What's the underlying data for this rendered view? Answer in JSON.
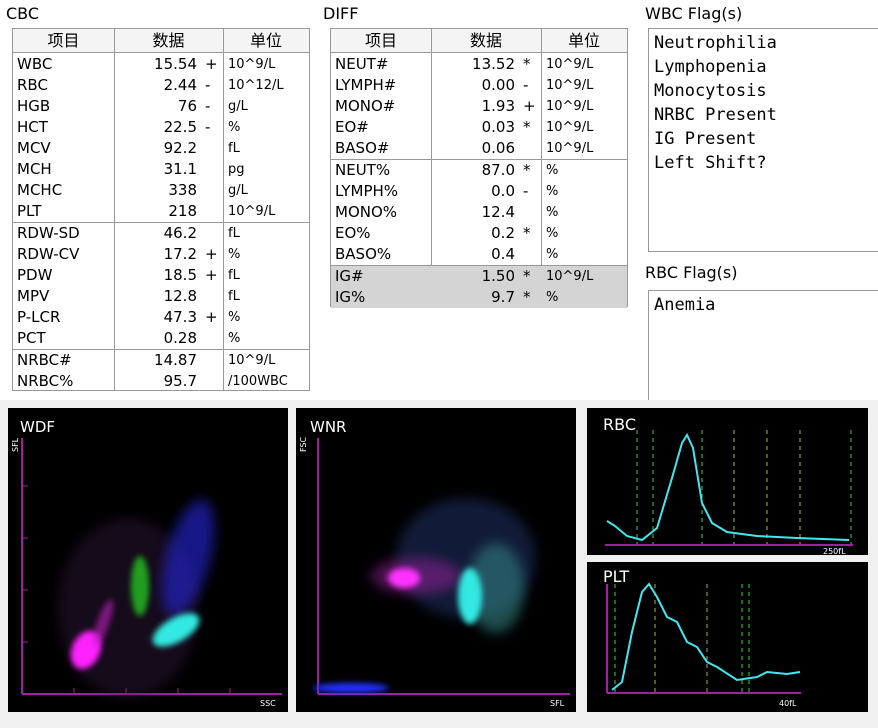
{
  "cbc": {
    "title": "CBC",
    "headers": [
      "项目",
      "数据",
      "单位"
    ],
    "groups": [
      [
        {
          "name": "WBC",
          "value": "15.54",
          "flag": "+",
          "unit": "10^9/L"
        },
        {
          "name": "RBC",
          "value": "2.44",
          "flag": "-",
          "unit": "10^12/L"
        },
        {
          "name": "HGB",
          "value": "76",
          "flag": "-",
          "unit": "g/L"
        },
        {
          "name": "HCT",
          "value": "22.5",
          "flag": "-",
          "unit": "%"
        },
        {
          "name": "MCV",
          "value": "92.2",
          "unit": "fL"
        },
        {
          "name": "MCH",
          "value": "31.1",
          "unit": "pg"
        },
        {
          "name": "MCHC",
          "value": "338",
          "unit": "g/L"
        },
        {
          "name": "PLT",
          "value": "218",
          "unit": "10^9/L"
        }
      ],
      [
        {
          "name": "RDW-SD",
          "value": "46.2",
          "unit": "fL"
        },
        {
          "name": "RDW-CV",
          "value": "17.2",
          "flag": "+",
          "unit": "%"
        },
        {
          "name": "PDW",
          "value": "18.5",
          "flag": "+",
          "unit": "fL"
        },
        {
          "name": "MPV",
          "value": "12.8",
          "unit": "fL"
        },
        {
          "name": "P-LCR",
          "value": "47.3",
          "flag": "+",
          "unit": "%"
        },
        {
          "name": "PCT",
          "value": "0.28",
          "unit": "%"
        }
      ],
      [
        {
          "name": "NRBC#",
          "value": "14.87",
          "unit": "10^9/L"
        },
        {
          "name": "NRBC%",
          "value": "95.7",
          "unit": "/100WBC"
        }
      ]
    ]
  },
  "diff": {
    "title": "DIFF",
    "headers": [
      "项目",
      "数据",
      "单位"
    ],
    "groups": [
      [
        {
          "name": "NEUT#",
          "value": "13.52",
          "flag": "*",
          "unit": "10^9/L"
        },
        {
          "name": "LYMPH#",
          "value": "0.00",
          "flag": "-",
          "unit": "10^9/L"
        },
        {
          "name": "MONO#",
          "value": "1.93",
          "flag": "+",
          "unit": "10^9/L"
        },
        {
          "name": "EO#",
          "value": "0.03",
          "flag": "*",
          "unit": "10^9/L"
        },
        {
          "name": "BASO#",
          "value": "0.06",
          "unit": "10^9/L"
        }
      ],
      [
        {
          "name": "NEUT%",
          "value": "87.0",
          "flag": "*",
          "unit": "%"
        },
        {
          "name": "LYMPH%",
          "value": "0.0",
          "flag": "-",
          "unit": "%"
        },
        {
          "name": "MONO%",
          "value": "12.4",
          "unit": "%"
        },
        {
          "name": "EO%",
          "value": "0.2",
          "flag": "*",
          "unit": "%"
        },
        {
          "name": "BASO%",
          "value": "0.4",
          "unit": "%"
        }
      ],
      [
        {
          "name": "IG#",
          "value": "1.50",
          "flag": "*",
          "unit": "10^9/L"
        },
        {
          "name": "IG%",
          "value": "9.7",
          "flag": "*",
          "unit": "%"
        }
      ]
    ]
  },
  "wbc_flags": {
    "title": "WBC Flag(s)",
    "items": [
      "Neutrophilia",
      "Lymphopenia",
      "Monocytosis",
      "NRBC Present",
      "IG Present",
      "Left Shift?"
    ]
  },
  "rbc_flags": {
    "title": "RBC Flag(s)",
    "items": [
      "Anemia"
    ]
  },
  "plots": [
    {
      "title": "WDF",
      "y_axis": "SFL",
      "x_axis": "SSC"
    },
    {
      "title": "WNR",
      "y_axis": "FSC",
      "x_axis": "SFL"
    }
  ],
  "histograms": [
    {
      "title": "RBC",
      "x_label": "250fL"
    },
    {
      "title": "PLT",
      "x_label": "40fL"
    }
  ]
}
